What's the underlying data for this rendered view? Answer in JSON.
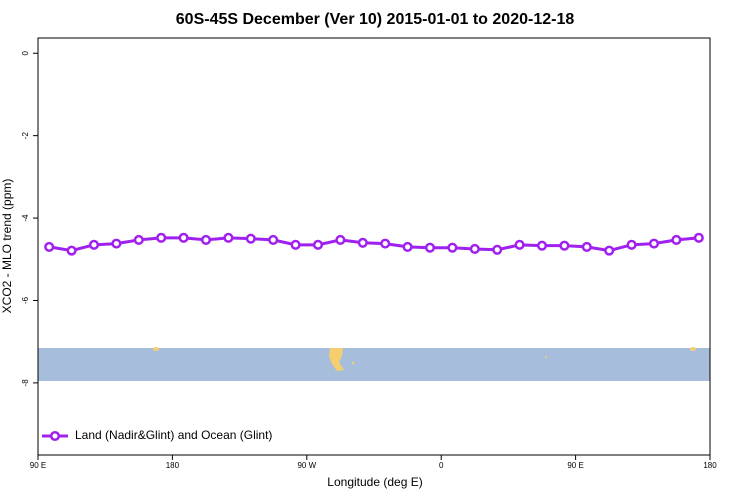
{
  "chart_data": {
    "type": "line",
    "title": "60S-45S December (Ver 10)   2015-01-01 to 2020-12-18",
    "x_label": "Longitude (deg E)",
    "y_label": "XCO2 - MLO trend (ppm)",
    "x": [
      97.5,
      112.5,
      127.5,
      142.5,
      157.5,
      172.5,
      187.5,
      202.5,
      217.5,
      232.5,
      247.5,
      262.5,
      277.5,
      292.5,
      307.5,
      322.5,
      337.5,
      352.5,
      367.5,
      382.5,
      397.5,
      412.5,
      427.5,
      442.5,
      457.5,
      472.5,
      487.5,
      502.5,
      517.5,
      532.5
    ],
    "series": [
      {
        "name": "Land (Nadir&Glint) and Ocean (Glint)",
        "color": "#a020f0",
        "values": [
          -4.7,
          -4.79,
          -4.65,
          -4.62,
          -4.53,
          -4.48,
          -4.48,
          -4.53,
          -4.48,
          -4.5,
          -4.53,
          -4.65,
          -4.65,
          -4.53,
          -4.6,
          -4.62,
          -4.7,
          -4.72,
          -4.72,
          -4.75,
          -4.77,
          -4.65,
          -4.67,
          -4.67,
          -4.7,
          -4.79,
          -4.65,
          -4.62,
          -4.53,
          -4.48
        ]
      }
    ],
    "xlim": [
      90,
      540
    ],
    "xticks": [
      {
        "value": 90,
        "label": "90 E"
      },
      180,
      {
        "value": 270,
        "label": "90 W"
      },
      {
        "value": 360,
        "label": "0"
      },
      {
        "value": 450,
        "label": "90 E"
      },
      {
        "value": 540,
        "label": "180"
      }
    ],
    "ylim": [
      -9.75,
      0.37
    ],
    "yticks": [
      0,
      -2,
      -4,
      -6,
      -8
    ],
    "legend": "bottom-left"
  }
}
